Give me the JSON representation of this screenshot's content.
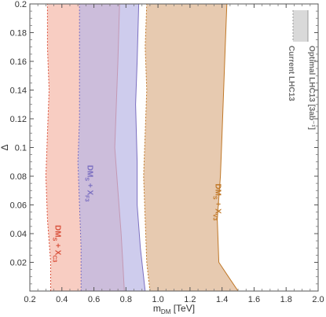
{
  "chart_data": {
    "type": "area",
    "xlabel": "m_DM [TeV]",
    "xlabel_main": "m",
    "xlabel_sub": "DM",
    "xlabel_unit": " [TeV]",
    "ylabel": "Δ",
    "xlim": [
      0.2,
      2.0
    ],
    "ylim": [
      0.0,
      0.2
    ],
    "xticks": [
      "0.2",
      "0.4",
      "0.6",
      "0.8",
      "1.0",
      "1.2",
      "1.4",
      "1.6",
      "1.8",
      "2.0"
    ],
    "yticks": [
      "0.02",
      "0.04",
      "0.06",
      "0.08",
      "0.1",
      "0.12",
      "0.14",
      "0.16",
      "0.18",
      "0.2"
    ],
    "grid": false,
    "legend": {
      "placement": "top-right",
      "entries": [
        "Optimal LHC13 [3ab⁻¹]",
        "Current LHC13"
      ]
    },
    "series": [
      {
        "name": "DMS + XC3",
        "label_main": "DM",
        "label_sub": "S",
        "label_mid": " + X",
        "label_sub2": "C3",
        "color": "#d9513c",
        "fill": "#f5b8a8",
        "current": [
          [
            0.33,
            0.0
          ],
          [
            0.33,
            0.02
          ],
          [
            0.31,
            0.05
          ],
          [
            0.3,
            0.08
          ],
          [
            0.31,
            0.11
          ],
          [
            0.32,
            0.14
          ],
          [
            0.31,
            0.17
          ],
          [
            0.31,
            0.2
          ]
        ],
        "optimal": [
          [
            0.79,
            0.0
          ],
          [
            0.78,
            0.02
          ],
          [
            0.77,
            0.04
          ],
          [
            0.75,
            0.07
          ],
          [
            0.73,
            0.1
          ],
          [
            0.74,
            0.13
          ],
          [
            0.75,
            0.16
          ],
          [
            0.76,
            0.2
          ]
        ]
      },
      {
        "name": "DMS + XF3",
        "label_main": "DM",
        "label_sub": "S",
        "label_mid": " + X",
        "label_sub2": "F3",
        "color": "#7b6fc0",
        "fill": "#b9b6e6",
        "current": [
          [
            0.52,
            0.0
          ],
          [
            0.52,
            0.03
          ],
          [
            0.51,
            0.06
          ],
          [
            0.5,
            0.09
          ],
          [
            0.51,
            0.12
          ],
          [
            0.51,
            0.15
          ],
          [
            0.51,
            0.18
          ],
          [
            0.51,
            0.2
          ]
        ],
        "optimal": [
          [
            0.92,
            0.0
          ],
          [
            0.89,
            0.03
          ],
          [
            0.87,
            0.06
          ],
          [
            0.87,
            0.09
          ],
          [
            0.86,
            0.13
          ],
          [
            0.87,
            0.16
          ],
          [
            0.88,
            0.2
          ]
        ]
      },
      {
        "name": "DMS + XV3",
        "label_main": "DM",
        "label_sub": "S",
        "label_mid": " + X",
        "label_sub2": "V3",
        "color": "#c07828",
        "fill": "#ddb48e",
        "current": [
          [
            0.95,
            0.0
          ],
          [
            0.93,
            0.02
          ],
          [
            0.92,
            0.05
          ],
          [
            0.91,
            0.08
          ],
          [
            0.92,
            0.11
          ],
          [
            0.93,
            0.14
          ],
          [
            0.92,
            0.17
          ],
          [
            0.93,
            0.2
          ]
        ],
        "optimal": [
          [
            1.5,
            0.0
          ],
          [
            1.44,
            0.01
          ],
          [
            1.38,
            0.02
          ],
          [
            1.37,
            0.05
          ],
          [
            1.39,
            0.08
          ],
          [
            1.4,
            0.11
          ],
          [
            1.41,
            0.14
          ],
          [
            1.42,
            0.17
          ],
          [
            1.43,
            0.2
          ]
        ]
      }
    ]
  }
}
